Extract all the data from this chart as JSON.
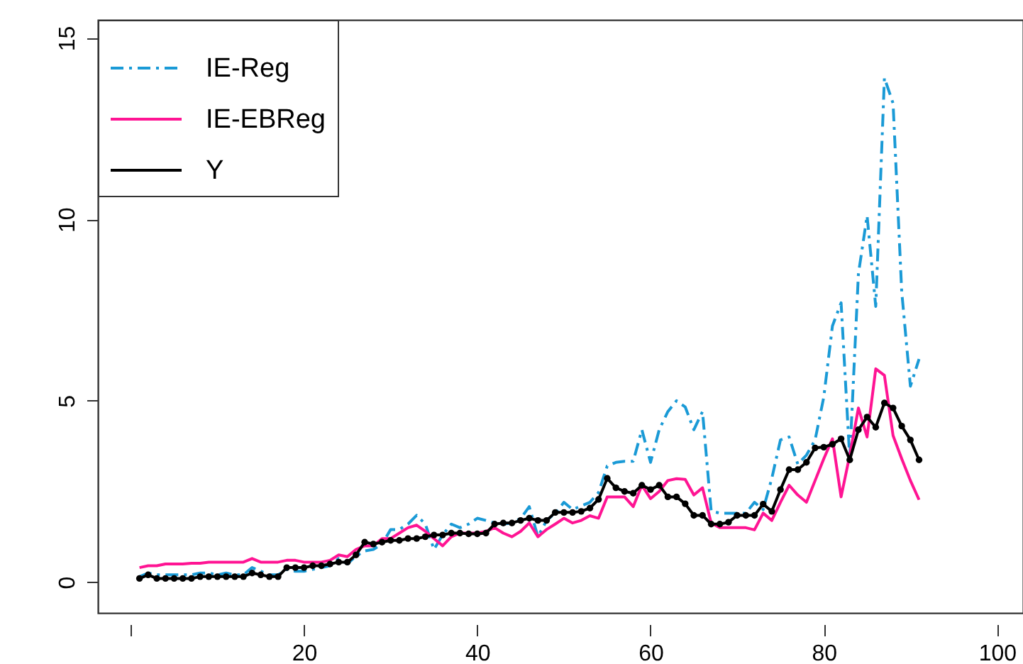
{
  "chart_data": {
    "type": "line",
    "xlim": [
      -3.8,
      103
    ],
    "xticks": [
      {
        "value": 0,
        "label": null
      },
      20,
      40,
      60,
      80,
      100
    ],
    "ylim": [
      -0.85,
      15.5
    ],
    "yticks": [
      0,
      5,
      10,
      15
    ],
    "grid": false,
    "legend": "top left",
    "x": [
      1,
      2,
      3,
      4,
      5,
      6,
      7,
      8,
      9,
      10,
      11,
      12,
      13,
      14,
      15,
      16,
      17,
      18,
      19,
      20,
      21,
      22,
      23,
      24,
      25,
      26,
      27,
      28,
      29,
      30,
      31,
      32,
      33,
      34,
      35,
      36,
      37,
      38,
      39,
      40,
      41,
      42,
      43,
      44,
      45,
      46,
      47,
      48,
      49,
      50,
      51,
      52,
      53,
      54,
      55,
      56,
      57,
      58,
      59,
      60,
      61,
      62,
      63,
      64,
      65,
      66,
      67,
      68,
      69,
      70,
      71,
      72,
      73,
      74,
      75,
      76,
      77,
      78,
      79,
      80,
      81,
      82,
      83,
      84,
      85,
      86,
      87,
      88,
      89,
      90,
      91
    ],
    "series": [
      {
        "name": "IE-Reg",
        "color": "#1a9ad6",
        "line_style": "dashed",
        "marker": "none",
        "values": [
          0.15,
          0.25,
          0.2,
          0.2,
          0.2,
          0.2,
          0.2,
          0.25,
          0.25,
          0.2,
          0.25,
          0.2,
          0.2,
          0.4,
          0.3,
          0.2,
          0.2,
          0.35,
          0.3,
          0.3,
          0.35,
          0.4,
          0.45,
          0.65,
          0.5,
          0.72,
          0.86,
          0.9,
          1.05,
          1.45,
          1.45,
          1.6,
          1.84,
          1.6,
          0.9,
          1.3,
          1.6,
          1.5,
          1.6,
          1.76,
          1.7,
          1.63,
          1.6,
          1.63,
          1.75,
          2.08,
          1.25,
          1.7,
          1.9,
          2.2,
          2.0,
          2.1,
          2.2,
          2.47,
          3.2,
          3.3,
          3.33,
          3.33,
          4.2,
          3.3,
          4.2,
          4.7,
          5.0,
          4.83,
          4.2,
          4.7,
          1.96,
          1.9,
          1.9,
          1.9,
          1.9,
          2.2,
          2.0,
          2.86,
          3.92,
          4.0,
          3.25,
          3.5,
          3.92,
          5.1,
          7.06,
          7.7,
          3.4,
          8.5,
          10.1,
          7.6,
          13.9,
          13.2,
          8.0,
          5.4,
          6.15
        ]
      },
      {
        "name": "IE-EBReg",
        "color": "#ff1493",
        "line_style": "solid",
        "marker": "none",
        "values": [
          0.4,
          0.45,
          0.45,
          0.5,
          0.5,
          0.5,
          0.52,
          0.52,
          0.55,
          0.55,
          0.55,
          0.55,
          0.55,
          0.65,
          0.55,
          0.55,
          0.55,
          0.6,
          0.6,
          0.55,
          0.55,
          0.55,
          0.6,
          0.75,
          0.7,
          0.9,
          1.0,
          1.0,
          1.2,
          1.2,
          1.35,
          1.5,
          1.57,
          1.4,
          1.2,
          1.0,
          1.25,
          1.35,
          1.35,
          1.35,
          1.4,
          1.5,
          1.35,
          1.25,
          1.4,
          1.63,
          1.25,
          1.45,
          1.6,
          1.76,
          1.63,
          1.7,
          1.83,
          1.76,
          2.35,
          2.35,
          2.35,
          2.08,
          2.67,
          2.3,
          2.5,
          2.8,
          2.85,
          2.83,
          2.4,
          2.6,
          1.63,
          1.5,
          1.5,
          1.5,
          1.5,
          1.44,
          1.9,
          1.7,
          2.2,
          2.67,
          2.4,
          2.2,
          2.8,
          3.4,
          3.95,
          2.35,
          3.5,
          4.8,
          4.0,
          5.88,
          5.7,
          4.04,
          3.4,
          2.8,
          2.27
        ]
      },
      {
        "name": "Y",
        "color": "#000000",
        "line_style": "solid",
        "marker": "circle",
        "values": [
          0.1,
          0.2,
          0.1,
          0.1,
          0.1,
          0.1,
          0.1,
          0.15,
          0.15,
          0.15,
          0.15,
          0.15,
          0.15,
          0.25,
          0.2,
          0.15,
          0.15,
          0.4,
          0.4,
          0.4,
          0.45,
          0.45,
          0.5,
          0.55,
          0.55,
          0.75,
          1.1,
          1.05,
          1.1,
          1.15,
          1.15,
          1.2,
          1.2,
          1.25,
          1.3,
          1.3,
          1.35,
          1.35,
          1.33,
          1.33,
          1.35,
          1.6,
          1.63,
          1.63,
          1.7,
          1.76,
          1.7,
          1.7,
          1.92,
          1.92,
          1.92,
          1.95,
          2.04,
          2.28,
          2.86,
          2.6,
          2.5,
          2.45,
          2.67,
          2.55,
          2.67,
          2.35,
          2.35,
          2.16,
          1.84,
          1.84,
          1.6,
          1.6,
          1.65,
          1.84,
          1.84,
          1.84,
          2.15,
          1.95,
          2.55,
          3.1,
          3.1,
          3.3,
          3.7,
          3.72,
          3.8,
          3.95,
          3.37,
          4.2,
          4.55,
          4.27,
          4.94,
          4.8,
          4.3,
          3.92,
          3.37
        ]
      }
    ]
  }
}
